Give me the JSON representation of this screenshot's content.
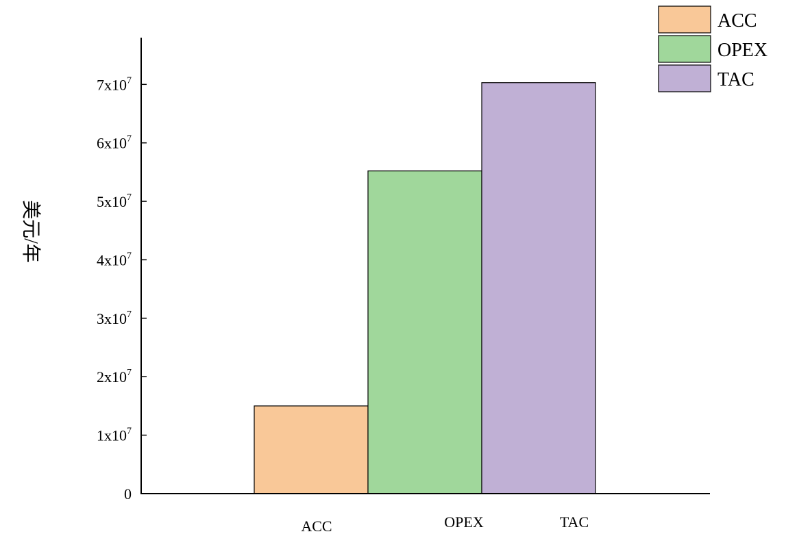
{
  "chart_data": {
    "type": "bar",
    "categories": [
      "ACC",
      "OPEX",
      "TAC"
    ],
    "values": [
      15000000,
      55200000,
      70300000
    ],
    "colors": [
      "#f9c898",
      "#a0d79b",
      "#c0b0d5"
    ],
    "ylabel": "美元/年",
    "ylim": [
      0,
      78000000
    ],
    "yticks": [
      {
        "value": 0,
        "label": "0",
        "sup": ""
      },
      {
        "value": 10000000,
        "label": "1x10",
        "sup": "7"
      },
      {
        "value": 20000000,
        "label": "2x10",
        "sup": "7"
      },
      {
        "value": 30000000,
        "label": "3x10",
        "sup": "7"
      },
      {
        "value": 40000000,
        "label": "4x10",
        "sup": "7"
      },
      {
        "value": 50000000,
        "label": "5x10",
        "sup": "7"
      },
      {
        "value": 60000000,
        "label": "6x10",
        "sup": "7"
      },
      {
        "value": 70000000,
        "label": "7x10",
        "sup": "7"
      }
    ],
    "legend": {
      "position": "top-right",
      "entries": [
        "ACC",
        "OPEX",
        "TAC"
      ]
    },
    "grid": false
  }
}
